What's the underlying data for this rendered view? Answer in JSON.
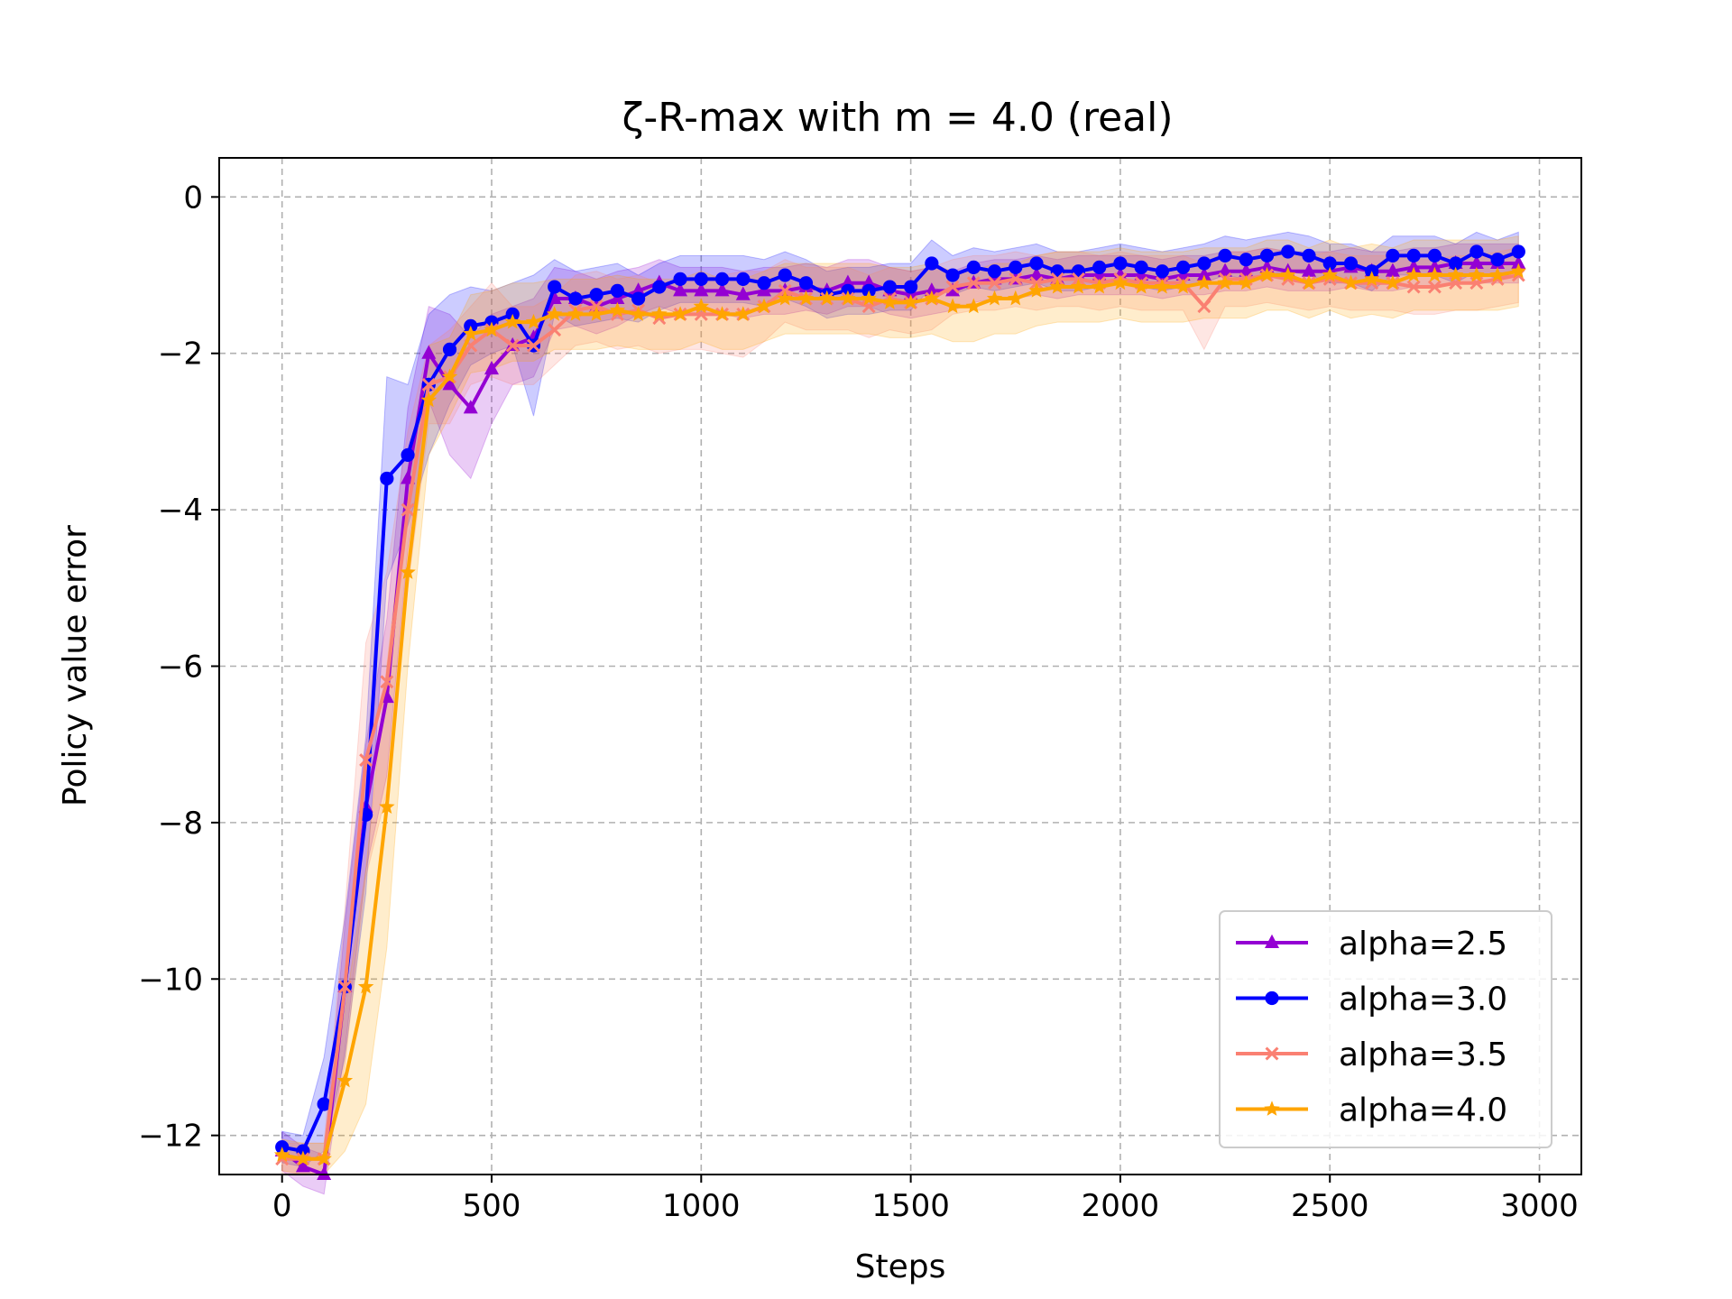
{
  "chart_data": {
    "type": "line",
    "title": "ζ-R-max with m = 4.0 (real)",
    "xlabel": "Steps",
    "ylabel": "Policy value error",
    "xlim": [
      -150,
      3100
    ],
    "ylim": [
      -12.5,
      0.5
    ],
    "xticks": [
      0,
      500,
      1000,
      1500,
      2000,
      2500,
      3000
    ],
    "xtick_labels": [
      "0",
      "500",
      "1000",
      "1500",
      "2000",
      "2500",
      "3000"
    ],
    "yticks": [
      0,
      -2,
      -4,
      -6,
      -8,
      -10,
      -12
    ],
    "ytick_labels": [
      "0",
      "−2",
      "−4",
      "−6",
      "−8",
      "−10",
      "−12"
    ],
    "grid": true,
    "legend_position": "lower-right",
    "x": [
      0,
      50,
      100,
      150,
      200,
      250,
      300,
      350,
      400,
      450,
      500,
      550,
      600,
      650,
      700,
      750,
      800,
      850,
      900,
      950,
      1000,
      1050,
      1100,
      1150,
      1200,
      1250,
      1300,
      1350,
      1400,
      1450,
      1500,
      1550,
      1600,
      1650,
      1700,
      1750,
      1800,
      1850,
      1900,
      1950,
      2000,
      2050,
      2100,
      2150,
      2200,
      2250,
      2300,
      2350,
      2400,
      2450,
      2500,
      2550,
      2600,
      2650,
      2700,
      2750,
      2800,
      2850,
      2900,
      2950
    ],
    "series": [
      {
        "name": "alpha=2.5",
        "color": "#9400D3",
        "marker": "triangle",
        "values": [
          -12.2,
          -12.4,
          -12.5,
          -10.1,
          -7.8,
          -6.4,
          -3.6,
          -2.0,
          -2.4,
          -2.7,
          -2.2,
          -1.9,
          -1.8,
          -1.3,
          -1.3,
          -1.4,
          -1.3,
          -1.2,
          -1.1,
          -1.2,
          -1.2,
          -1.2,
          -1.25,
          -1.2,
          -1.2,
          -1.15,
          -1.2,
          -1.1,
          -1.1,
          -1.2,
          -1.25,
          -1.2,
          -1.2,
          -1.1,
          -1.05,
          -1.05,
          -1.0,
          -1.05,
          -1.0,
          -1.0,
          -1.0,
          -1.0,
          -1.05,
          -1.0,
          -1.0,
          -0.95,
          -0.95,
          -0.9,
          -0.95,
          -0.95,
          -0.95,
          -0.9,
          -0.95,
          -0.95,
          -0.9,
          -0.9,
          -0.85,
          -0.85,
          -0.85,
          -0.85
        ],
        "band": [
          0.25,
          0.25,
          0.25,
          0.8,
          0.8,
          1.0,
          0.9,
          0.6,
          0.9,
          0.9,
          0.7,
          0.5,
          0.5,
          0.4,
          0.35,
          0.35,
          0.35,
          0.3,
          0.3,
          0.3,
          0.3,
          0.3,
          0.3,
          0.3,
          0.3,
          0.3,
          0.3,
          0.3,
          0.3,
          0.3,
          0.3,
          0.3,
          0.25,
          0.25,
          0.25,
          0.25,
          0.25,
          0.25,
          0.25,
          0.25,
          0.25,
          0.25,
          0.25,
          0.25,
          0.25,
          0.25,
          0.25,
          0.25,
          0.25,
          0.25,
          0.25,
          0.25,
          0.25,
          0.25,
          0.25,
          0.25,
          0.25,
          0.25,
          0.25,
          0.25
        ]
      },
      {
        "name": "alpha=3.0",
        "color": "#0000FF",
        "marker": "circle",
        "values": [
          -12.15,
          -12.2,
          -11.6,
          -10.1,
          -7.9,
          -3.6,
          -3.3,
          -2.4,
          -1.95,
          -1.65,
          -1.6,
          -1.5,
          -1.9,
          -1.15,
          -1.3,
          -1.25,
          -1.2,
          -1.3,
          -1.15,
          -1.05,
          -1.05,
          -1.05,
          -1.05,
          -1.1,
          -1.0,
          -1.1,
          -1.25,
          -1.2,
          -1.2,
          -1.15,
          -1.15,
          -0.85,
          -1.0,
          -0.9,
          -0.95,
          -0.9,
          -0.85,
          -0.95,
          -0.95,
          -0.9,
          -0.85,
          -0.9,
          -0.95,
          -0.9,
          -0.85,
          -0.75,
          -0.8,
          -0.75,
          -0.7,
          -0.75,
          -0.85,
          -0.85,
          -0.95,
          -0.75,
          -0.75,
          -0.75,
          -0.85,
          -0.7,
          -0.8,
          -0.7
        ],
        "band": [
          0.2,
          0.2,
          0.6,
          0.9,
          1.0,
          1.3,
          0.9,
          0.9,
          0.7,
          0.5,
          0.4,
          0.4,
          0.9,
          0.35,
          0.35,
          0.35,
          0.35,
          0.3,
          0.3,
          0.3,
          0.3,
          0.3,
          0.3,
          0.3,
          0.3,
          0.3,
          0.3,
          0.3,
          0.3,
          0.3,
          0.3,
          0.3,
          0.25,
          0.25,
          0.25,
          0.25,
          0.25,
          0.25,
          0.25,
          0.25,
          0.25,
          0.25,
          0.25,
          0.25,
          0.25,
          0.25,
          0.25,
          0.25,
          0.25,
          0.25,
          0.25,
          0.25,
          0.25,
          0.25,
          0.25,
          0.25,
          0.25,
          0.25,
          0.25,
          0.25
        ]
      },
      {
        "name": "alpha=3.5",
        "color": "#FA8072",
        "marker": "x",
        "values": [
          -12.3,
          -12.3,
          -12.3,
          -10.1,
          -7.2,
          -6.2,
          -4.0,
          -2.4,
          -2.3,
          -1.9,
          -1.7,
          -1.9,
          -1.9,
          -1.7,
          -1.45,
          -1.4,
          -1.5,
          -1.45,
          -1.55,
          -1.5,
          -1.5,
          -1.5,
          -1.5,
          -1.4,
          -1.2,
          -1.3,
          -1.3,
          -1.3,
          -1.4,
          -1.3,
          -1.35,
          -1.3,
          -1.15,
          -1.1,
          -1.1,
          -1.05,
          -1.1,
          -1.05,
          -1.05,
          -1.1,
          -1.05,
          -1.1,
          -1.1,
          -1.1,
          -1.4,
          -1.05,
          -1.05,
          -1.0,
          -1.05,
          -1.1,
          -1.05,
          -1.1,
          -1.1,
          -1.1,
          -1.15,
          -1.15,
          -1.1,
          -1.1,
          -1.05,
          -1.0
        ],
        "band": [
          0.2,
          0.2,
          0.2,
          1.0,
          1.5,
          1.4,
          1.0,
          0.5,
          0.6,
          0.5,
          0.6,
          0.5,
          0.5,
          0.45,
          0.45,
          0.45,
          0.45,
          0.45,
          0.45,
          0.45,
          0.45,
          0.5,
          0.55,
          0.45,
          0.4,
          0.4,
          0.4,
          0.4,
          0.4,
          0.4,
          0.4,
          0.4,
          0.35,
          0.35,
          0.35,
          0.35,
          0.35,
          0.35,
          0.35,
          0.35,
          0.35,
          0.35,
          0.35,
          0.35,
          0.55,
          0.35,
          0.35,
          0.35,
          0.35,
          0.35,
          0.35,
          0.35,
          0.35,
          0.35,
          0.35,
          0.35,
          0.35,
          0.35,
          0.35,
          0.35
        ]
      },
      {
        "name": "alpha=4.0",
        "color": "#FFA500",
        "marker": "star",
        "values": [
          -12.25,
          -12.3,
          -12.3,
          -11.3,
          -10.1,
          -7.8,
          -4.8,
          -2.6,
          -2.3,
          -1.75,
          -1.7,
          -1.6,
          -1.6,
          -1.5,
          -1.5,
          -1.5,
          -1.45,
          -1.5,
          -1.5,
          -1.5,
          -1.4,
          -1.5,
          -1.5,
          -1.4,
          -1.3,
          -1.3,
          -1.3,
          -1.3,
          -1.3,
          -1.35,
          -1.35,
          -1.3,
          -1.4,
          -1.4,
          -1.3,
          -1.3,
          -1.2,
          -1.15,
          -1.15,
          -1.15,
          -1.1,
          -1.15,
          -1.15,
          -1.15,
          -1.1,
          -1.1,
          -1.1,
          -1.0,
          -1.0,
          -1.1,
          -1.0,
          -1.1,
          -1.05,
          -1.1,
          -1.0,
          -1.0,
          -1.0,
          -1.0,
          -1.0,
          -0.95
        ],
        "band": [
          0.2,
          0.2,
          0.2,
          0.9,
          1.5,
          1.8,
          1.2,
          0.7,
          0.5,
          0.5,
          0.5,
          0.5,
          0.5,
          0.45,
          0.45,
          0.45,
          0.45,
          0.45,
          0.45,
          0.45,
          0.45,
          0.45,
          0.45,
          0.45,
          0.45,
          0.45,
          0.45,
          0.45,
          0.45,
          0.45,
          0.45,
          0.45,
          0.45,
          0.45,
          0.45,
          0.45,
          0.45,
          0.45,
          0.45,
          0.45,
          0.45,
          0.45,
          0.45,
          0.45,
          0.45,
          0.45,
          0.45,
          0.45,
          0.45,
          0.45,
          0.45,
          0.45,
          0.45,
          0.45,
          0.45,
          0.45,
          0.45,
          0.45,
          0.45,
          0.45
        ]
      }
    ]
  }
}
